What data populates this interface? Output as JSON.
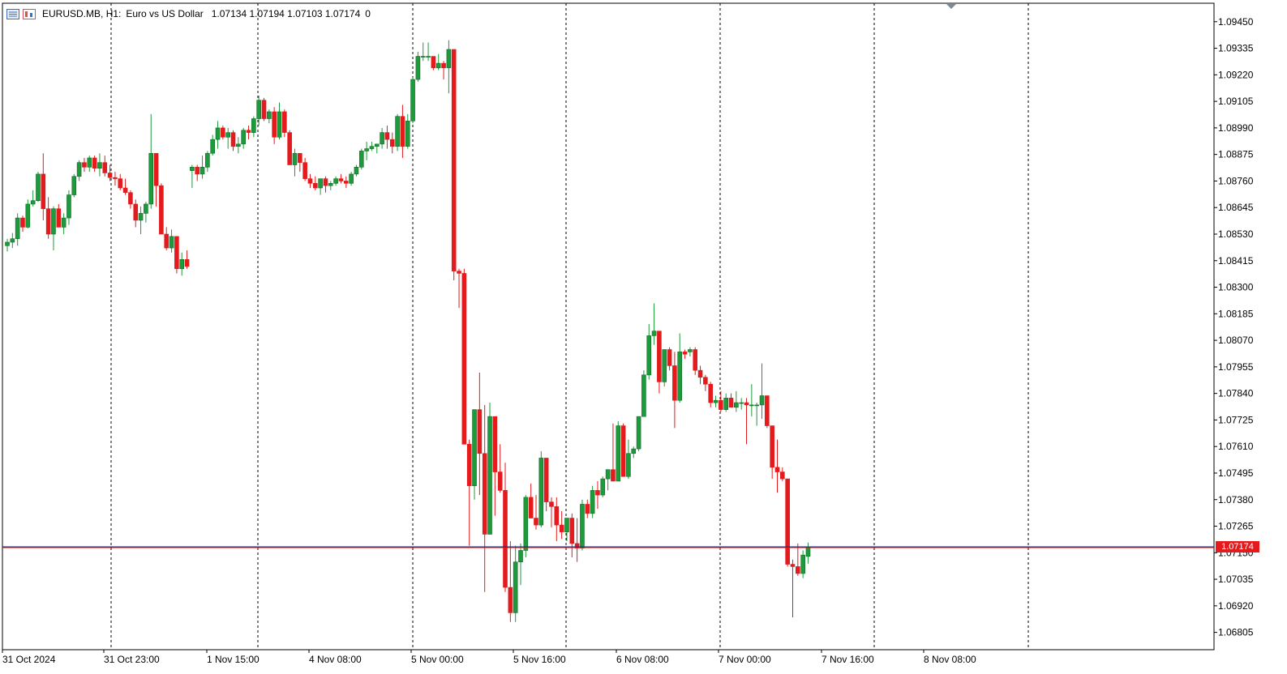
{
  "header": {
    "symbol": "EURUSD.MB",
    "timeframe": "H1:",
    "description": "Euro vs US Dollar",
    "ohlc": "1.07134 1.07194 1.07103 1.07174",
    "extra": "0"
  },
  "current_price_label": "1.07174",
  "icons": [
    "chart-menu-icon",
    "chart-color-icon"
  ],
  "colors": {
    "bull": "#1d9a3b",
    "bear": "#e41a1c",
    "price_line": "#1a237e",
    "grid": "#000000"
  },
  "chart_data": {
    "type": "candlestick",
    "x_tick_labels": [
      "31 Oct 2024",
      "31 Oct 23:00",
      "1 Nov 15:00",
      "4 Nov 08:00",
      "5 Nov 00:00",
      "5 Nov 16:00",
      "6 Nov 08:00",
      "7 Nov 00:00",
      "7 Nov 16:00",
      "8 Nov 08:00"
    ],
    "y_tick_labels": [
      "1.09450",
      "1.09335",
      "1.09220",
      "1.09105",
      "1.08990",
      "1.08875",
      "1.08760",
      "1.08645",
      "1.08530",
      "1.08415",
      "1.08300",
      "1.08185",
      "1.08070",
      "1.07955",
      "1.07840",
      "1.07725",
      "1.07610",
      "1.07495",
      "1.07380",
      "1.07265",
      "1.07150",
      "1.07035",
      "1.06920",
      "1.06805"
    ],
    "ylim": [
      1.0673,
      1.0953
    ],
    "current_price": 1.07174,
    "grid": "vertical-dashed",
    "candles": [
      [
        1.0848,
        1.0851,
        1.08455,
        1.08495
      ],
      [
        1.08495,
        1.08535,
        1.0847,
        1.0851
      ],
      [
        1.0851,
        1.0862,
        1.0848,
        1.086
      ],
      [
        1.086,
        1.0861,
        1.0854,
        1.0856
      ],
      [
        1.0856,
        1.0868,
        1.08555,
        1.0866
      ],
      [
        1.0866,
        1.0872,
        1.0865,
        1.08675
      ],
      [
        1.08675,
        1.088,
        1.0867,
        1.0879
      ],
      [
        1.0879,
        1.0888,
        1.0859,
        1.0864
      ],
      [
        1.0864,
        1.0869,
        1.0851,
        1.0853
      ],
      [
        1.0853,
        1.0865,
        1.0846,
        1.0864
      ],
      [
        1.0864,
        1.0866,
        1.0856,
        1.0856
      ],
      [
        1.0856,
        1.0862,
        1.0853,
        1.086
      ],
      [
        1.086,
        1.0872,
        1.0857,
        1.087
      ],
      [
        1.087,
        1.0879,
        1.0869,
        1.0878
      ],
      [
        1.0878,
        1.0885,
        1.0876,
        1.0884
      ],
      [
        1.0884,
        1.0886,
        1.088,
        1.0882
      ],
      [
        1.0882,
        1.0887,
        1.088,
        1.0886
      ],
      [
        1.0886,
        1.0887,
        1.088,
        1.08815
      ],
      [
        1.08815,
        1.0888,
        1.0878,
        1.0884
      ],
      [
        1.0884,
        1.0887,
        1.0878,
        1.08795
      ],
      [
        1.08795,
        1.0883,
        1.0876,
        1.08775
      ],
      [
        1.08775,
        1.088,
        1.0874,
        1.0877
      ],
      [
        1.0877,
        1.0879,
        1.0872,
        1.0873
      ],
      [
        1.0873,
        1.0877,
        1.087,
        1.0871
      ],
      [
        1.0871,
        1.0872,
        1.0864,
        1.0866
      ],
      [
        1.0866,
        1.0868,
        1.0856,
        1.0859
      ],
      [
        1.0859,
        1.0865,
        1.0853,
        1.0862
      ],
      [
        1.0862,
        1.0867,
        1.0858,
        1.0866
      ],
      [
        1.0866,
        1.0905,
        1.0864,
        1.0888
      ],
      [
        1.0888,
        1.0888,
        1.0865,
        1.0874
      ],
      [
        1.0874,
        1.0875,
        1.0855,
        1.0853
      ],
      [
        1.0853,
        1.0856,
        1.0846,
        1.0847
      ],
      [
        1.0847,
        1.0855,
        1.0845,
        1.0852
      ],
      [
        1.0852,
        1.0852,
        1.0836,
        1.0838
      ],
      [
        1.0838,
        1.0845,
        1.0835,
        1.0842
      ],
      [
        1.0842,
        1.0846,
        1.0838,
        1.0839
      ],
      [
        1.08805,
        1.0883,
        1.0873,
        1.0882
      ],
      [
        1.0882,
        1.0883,
        1.0876,
        1.0879
      ],
      [
        1.0879,
        1.0887,
        1.0877,
        1.0882
      ],
      [
        1.0882,
        1.0889,
        1.088,
        1.0888
      ],
      [
        1.0888,
        1.0896,
        1.0887,
        1.0894
      ],
      [
        1.0894,
        1.0902,
        1.089,
        1.0899
      ],
      [
        1.0899,
        1.09,
        1.0894,
        1.0895
      ],
      [
        1.0895,
        1.0899,
        1.089,
        1.0897
      ],
      [
        1.0897,
        1.0898,
        1.0889,
        1.0891
      ],
      [
        1.0891,
        1.0895,
        1.0888,
        1.0892
      ],
      [
        1.0892,
        1.0899,
        1.089,
        1.0898
      ],
      [
        1.0898,
        1.09,
        1.0894,
        1.0897
      ],
      [
        1.0897,
        1.0904,
        1.0895,
        1.0903
      ],
      [
        1.0903,
        1.0913,
        1.09,
        1.0911
      ],
      [
        1.0911,
        1.0912,
        1.0902,
        1.0903
      ],
      [
        1.0903,
        1.0907,
        1.0901,
        1.0906
      ],
      [
        1.0906,
        1.0908,
        1.0892,
        1.0895
      ],
      [
        1.0895,
        1.091,
        1.0894,
        1.0906
      ],
      [
        1.0906,
        1.0907,
        1.0895,
        1.0897
      ],
      [
        1.0897,
        1.0898,
        1.0883,
        1.0883
      ],
      [
        1.0883,
        1.089,
        1.0878,
        1.0888
      ],
      [
        1.0888,
        1.0888,
        1.088,
        1.0884
      ],
      [
        1.0884,
        1.0886,
        1.0876,
        1.0877
      ],
      [
        1.0877,
        1.0879,
        1.0873,
        1.0875
      ],
      [
        1.0875,
        1.0878,
        1.0872,
        1.0873
      ],
      [
        1.0873,
        1.0877,
        1.087,
        1.0877
      ],
      [
        1.0877,
        1.0878,
        1.0871,
        1.0874
      ],
      [
        1.0874,
        1.0876,
        1.0872,
        1.0875
      ],
      [
        1.0875,
        1.0878,
        1.0874,
        1.0877
      ],
      [
        1.0877,
        1.0879,
        1.0875,
        1.0876
      ],
      [
        1.0876,
        1.0878,
        1.0873,
        1.0875
      ],
      [
        1.0875,
        1.088,
        1.0874,
        1.0879
      ],
      [
        1.0879,
        1.0883,
        1.0878,
        1.0882
      ],
      [
        1.0882,
        1.089,
        1.0881,
        1.0889
      ],
      [
        1.0889,
        1.0893,
        1.0885,
        1.089
      ],
      [
        1.089,
        1.0893,
        1.0889,
        1.0891
      ],
      [
        1.0891,
        1.0892,
        1.0888,
        1.0892
      ],
      [
        1.0892,
        1.0899,
        1.089,
        1.0897
      ],
      [
        1.0897,
        1.09,
        1.089,
        1.0894
      ],
      [
        1.0894,
        1.0897,
        1.0888,
        1.0891
      ],
      [
        1.0891,
        1.0905,
        1.0889,
        1.0904
      ],
      [
        1.0904,
        1.0909,
        1.0886,
        1.0891
      ],
      [
        1.0891,
        1.0905,
        1.089,
        1.0902
      ],
      [
        1.0902,
        1.0921,
        1.0901,
        1.092
      ],
      [
        1.092,
        1.0932,
        1.0919,
        1.093
      ],
      [
        1.093,
        1.0936,
        1.0928,
        1.093
      ],
      [
        1.093,
        1.0936,
        1.0928,
        1.093
      ],
      [
        1.093,
        1.093,
        1.0924,
        1.0925
      ],
      [
        1.0925,
        1.0931,
        1.0924,
        1.0927
      ],
      [
        1.0927,
        1.0928,
        1.092,
        1.0925
      ],
      [
        1.0925,
        1.0937,
        1.0914,
        1.0933
      ],
      [
        1.0933,
        1.0933,
        1.0833,
        1.0837
      ],
      [
        1.0837,
        1.0838,
        1.0821,
        1.0836
      ],
      [
        1.0836,
        1.0838,
        1.0762,
        1.0762
      ],
      [
        1.0762,
        1.0764,
        1.0718,
        1.0744
      ],
      [
        1.0744,
        1.0777,
        1.0738,
        1.0777
      ],
      [
        1.0777,
        1.0793,
        1.074,
        1.0758
      ],
      [
        1.0758,
        1.0779,
        1.0698,
        1.0723
      ],
      [
        1.0723,
        1.078,
        1.0723,
        1.0774
      ],
      [
        1.0774,
        1.0774,
        1.0731,
        1.075
      ],
      [
        1.075,
        1.0762,
        1.0741,
        1.0742
      ],
      [
        1.0742,
        1.0754,
        1.0698,
        1.07
      ],
      [
        1.07,
        1.072,
        1.0685,
        1.0689
      ],
      [
        1.0689,
        1.0718,
        1.0685,
        1.0711
      ],
      [
        1.0711,
        1.0719,
        1.0701,
        1.0716
      ],
      [
        1.0716,
        1.074,
        1.0713,
        1.0739
      ],
      [
        1.0739,
        1.0745,
        1.073,
        1.073
      ],
      [
        1.073,
        1.074,
        1.0725,
        1.0727
      ],
      [
        1.0727,
        1.0759,
        1.0726,
        1.0756
      ],
      [
        1.0756,
        1.0756,
        1.0733,
        1.0737
      ],
      [
        1.0737,
        1.0739,
        1.0726,
        1.0735
      ],
      [
        1.0735,
        1.0739,
        1.072,
        1.0727
      ],
      [
        1.0727,
        1.0733,
        1.0721,
        1.0724
      ],
      [
        1.0724,
        1.073,
        1.072,
        1.073
      ],
      [
        1.073,
        1.0732,
        1.0713,
        1.0719
      ],
      [
        1.0719,
        1.073,
        1.0711,
        1.0717
      ],
      [
        1.0717,
        1.0738,
        1.0716,
        1.0736
      ],
      [
        1.0736,
        1.0738,
        1.073,
        1.0732
      ],
      [
        1.0732,
        1.0744,
        1.073,
        1.0742
      ],
      [
        1.0742,
        1.0746,
        1.0734,
        1.074
      ],
      [
        1.074,
        1.0748,
        1.0739,
        1.0747
      ],
      [
        1.0747,
        1.0751,
        1.0742,
        1.0751
      ],
      [
        1.0751,
        1.0771,
        1.0746,
        1.0746
      ],
      [
        1.0746,
        1.0772,
        1.0746,
        1.077
      ],
      [
        1.077,
        1.0771,
        1.0748,
        1.0748
      ],
      [
        1.0748,
        1.0764,
        1.0747,
        1.0758
      ],
      [
        1.0758,
        1.0761,
        1.0756,
        1.076
      ],
      [
        1.076,
        1.0774,
        1.0759,
        1.0774
      ],
      [
        1.0774,
        1.0794,
        1.0774,
        1.0792
      ],
      [
        1.0792,
        1.0814,
        1.079,
        1.0809
      ],
      [
        1.0809,
        1.0823,
        1.0805,
        1.0811
      ],
      [
        1.0811,
        1.0811,
        1.0784,
        1.0789
      ],
      [
        1.0789,
        1.0802,
        1.0787,
        1.0803
      ],
      [
        1.0803,
        1.0804,
        1.0794,
        1.0796
      ],
      [
        1.0796,
        1.0802,
        1.0769,
        1.0781
      ],
      [
        1.0781,
        1.081,
        1.078,
        1.0802
      ],
      [
        1.0802,
        1.0803,
        1.0799,
        1.0801
      ],
      [
        1.0802,
        1.0804,
        1.08,
        1.0803
      ],
      [
        1.0803,
        1.0804,
        1.0792,
        1.0794
      ],
      [
        1.0794,
        1.0796,
        1.0788,
        1.0791
      ],
      [
        1.0791,
        1.0792,
        1.0785,
        1.0788
      ],
      [
        1.0788,
        1.0789,
        1.0778,
        1.078
      ],
      [
        1.078,
        1.0783,
        1.0778,
        1.0781
      ],
      [
        1.0781,
        1.0785,
        1.0776,
        1.0777
      ],
      [
        1.0777,
        1.0784,
        1.0776,
        1.0782
      ],
      [
        1.0782,
        1.0784,
        1.0778,
        1.0778
      ],
      [
        1.0778,
        1.0785,
        1.0776,
        1.078
      ],
      [
        1.078,
        1.0782,
        1.0777,
        1.078
      ],
      [
        1.078,
        1.0782,
        1.0762,
        1.0779
      ],
      [
        1.0779,
        1.0788,
        1.0774,
        1.0779
      ],
      [
        1.0779,
        1.078,
        1.077,
        1.0779
      ],
      [
        1.0779,
        1.0797,
        1.0773,
        1.0783
      ],
      [
        1.0783,
        1.0783,
        1.0769,
        1.077
      ],
      [
        1.077,
        1.077,
        1.0747,
        1.0752
      ],
      [
        1.0752,
        1.0764,
        1.0741,
        1.075
      ],
      [
        1.075,
        1.0752,
        1.0746,
        1.0747
      ],
      [
        1.0747,
        1.0747,
        1.0709,
        1.071
      ],
      [
        1.071,
        1.0712,
        1.0687,
        1.0709
      ],
      [
        1.0709,
        1.0719,
        1.0705,
        1.0706
      ],
      [
        1.0706,
        1.0716,
        1.0704,
        1.0714
      ],
      [
        1.07134,
        1.07194,
        1.07103,
        1.07174
      ]
    ]
  }
}
